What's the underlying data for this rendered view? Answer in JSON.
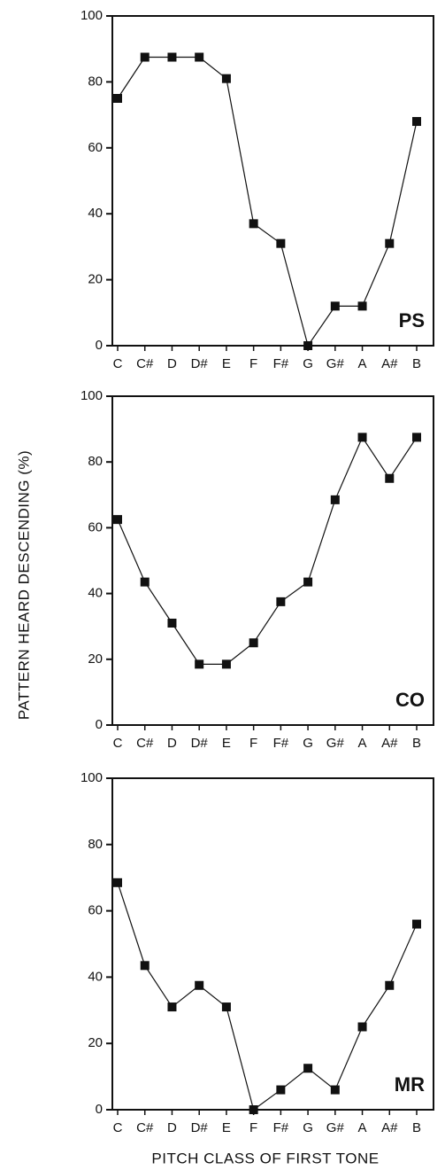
{
  "y_label": "PATTERN HEARD DESCENDING (%)",
  "x_label": "PITCH CLASS OF FIRST TONE",
  "chart_data": [
    {
      "type": "line",
      "label": "PS",
      "color": "#111111",
      "categories": [
        "C",
        "C#",
        "D",
        "D#",
        "E",
        "F",
        "F#",
        "G",
        "G#",
        "A",
        "A#",
        "B"
      ],
      "values": [
        75,
        87.5,
        87.5,
        87.5,
        81,
        37,
        31,
        0,
        12,
        12,
        31,
        68
      ],
      "ylim": [
        0,
        100
      ],
      "yticks": [
        0,
        20,
        40,
        60,
        80,
        100
      ]
    },
    {
      "type": "line",
      "label": "CO",
      "color": "#111111",
      "categories": [
        "C",
        "C#",
        "D",
        "D#",
        "E",
        "F",
        "F#",
        "G",
        "G#",
        "A",
        "A#",
        "B"
      ],
      "values": [
        62.5,
        43.5,
        31,
        18.5,
        18.5,
        25,
        37.5,
        43.5,
        68.5,
        87.5,
        75,
        87.5
      ],
      "ylim": [
        0,
        100
      ],
      "yticks": [
        0,
        20,
        40,
        60,
        80,
        100
      ]
    },
    {
      "type": "line",
      "label": "MR",
      "color": "#111111",
      "categories": [
        "C",
        "C#",
        "D",
        "D#",
        "E",
        "F",
        "F#",
        "G",
        "G#",
        "A",
        "A#",
        "B"
      ],
      "values": [
        68.5,
        43.5,
        31,
        37.5,
        31,
        0,
        6,
        12.5,
        6,
        25,
        37.5,
        56
      ],
      "ylim": [
        0,
        100
      ],
      "yticks": [
        0,
        20,
        40,
        60,
        80,
        100
      ]
    }
  ]
}
